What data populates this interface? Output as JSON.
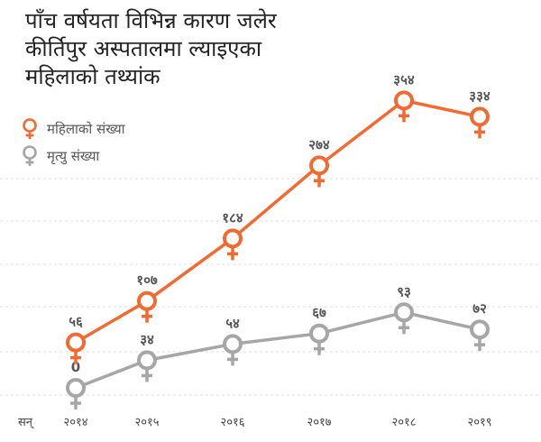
{
  "header": {
    "title_line1": "पाँच वर्षयता विभिन्न कारण जलेर",
    "title_line2": "कीर्तिपुर अस्पतालमा ल्याइएका",
    "title_line3": "महिलाको तथ्यांक"
  },
  "legend": {
    "items": [
      {
        "label": "महिलाको संख्या",
        "icon": "female-symbol-icon",
        "color": "#f26a30"
      },
      {
        "label": "मृत्यु संख्या",
        "icon": "female-symbol-icon",
        "color": "#a6a6a6"
      }
    ]
  },
  "chart_data": {
    "type": "line",
    "xlabel": "सन्",
    "categories": [
      "२०१४",
      "२०१५",
      "२०१६",
      "२०१७",
      "२०१८",
      "२०१९"
    ],
    "series": [
      {
        "name": "महिलाको संख्या",
        "color": "#f26a30",
        "values": [
          56,
          107,
          184,
          274,
          354,
          334
        ],
        "labels": [
          "५६",
          "१०७",
          "१८४",
          "२७४",
          "३५४",
          "३३४"
        ]
      },
      {
        "name": "मृत्यु संख्या",
        "color": "#a6a6a6",
        "values": [
          0,
          34,
          54,
          67,
          93,
          72
        ],
        "labels": [
          "0",
          "३४",
          "५४",
          "६७",
          "९३",
          "७२"
        ]
      }
    ],
    "marker": "female-symbol-icon",
    "grid": "horizontal-dashed"
  }
}
